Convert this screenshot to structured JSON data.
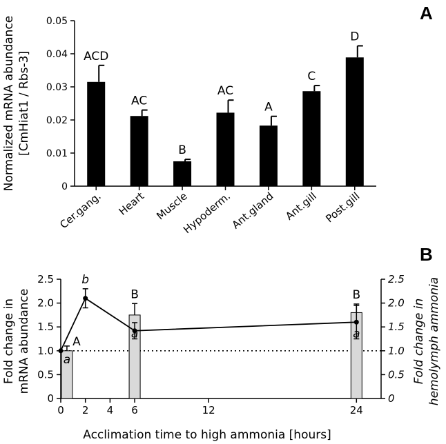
{
  "chart_data": [
    {
      "panel_label": "A",
      "type": "bar",
      "ylabel_line1": "Normalized mRNA abundance",
      "ylabel_line2": "[CmHiat1 / Rbs-3]",
      "ylim": [
        0,
        0.05
      ],
      "yticks": [
        "0",
        "0.01",
        "0.02",
        "0.03",
        "0.04",
        "0.05"
      ],
      "ytick_values": [
        0,
        0.01,
        0.02,
        0.03,
        0.04,
        0.05
      ],
      "categories": [
        "Cer.gang.",
        "Heart",
        "Muscle",
        "Hypoderm.",
        "Ant.gland",
        "Ant.gill",
        "Post.gill"
      ],
      "values": [
        0.0315,
        0.0212,
        0.0075,
        0.0222,
        0.0183,
        0.0287,
        0.0389
      ],
      "errors": [
        0.005,
        0.0018,
        0.0006,
        0.0038,
        0.0028,
        0.0017,
        0.0035
      ],
      "group_labels": [
        "ACD",
        "AC",
        "B",
        "AC",
        "A",
        "C",
        "D"
      ],
      "bar_color": "#000000"
    },
    {
      "panel_label": "B",
      "type": "bar+line",
      "xlabel": "Acclimation time to high ammonia [hours]",
      "ylabel_left_line1": "Fold change in",
      "ylabel_left_line2": "mRNA abundance",
      "ylabel_right_line1": "Fold change in",
      "ylabel_right_line2": "hemolymph ammonia",
      "xlim": [
        0,
        26
      ],
      "xticks": [
        "0",
        "2",
        "4",
        "6",
        "12",
        "24"
      ],
      "xtick_values": [
        0,
        2,
        4,
        6,
        12,
        24
      ],
      "ylim": [
        0,
        2.5
      ],
      "yticks_left": [
        "0",
        "0.5",
        "1.0",
        "1.5",
        "2.0",
        "2.5"
      ],
      "yticks_right": [
        "0",
        "0.5",
        "1.0",
        "1.5",
        "2.0",
        "2.5"
      ],
      "ytick_values": [
        0,
        0.5,
        1.0,
        1.5,
        2.0,
        2.5
      ],
      "reference_line": 1.0,
      "bars": {
        "x": [
          0.5,
          6,
          24
        ],
        "values": [
          1.0,
          1.75,
          1.8
        ],
        "errors": [
          0.1,
          0.24,
          0.18
        ],
        "labels": [
          "A",
          "B",
          "B"
        ],
        "color": "#d9d9d9"
      },
      "line": {
        "x": [
          0,
          2,
          6,
          24
        ],
        "values": [
          1.0,
          2.1,
          1.42,
          1.6
        ],
        "errors": [
          0,
          0.2,
          0.17,
          0.35
        ],
        "labels": [
          "",
          "b",
          "a",
          "a"
        ]
      },
      "bar_inner_labels": [
        "a"
      ]
    }
  ]
}
